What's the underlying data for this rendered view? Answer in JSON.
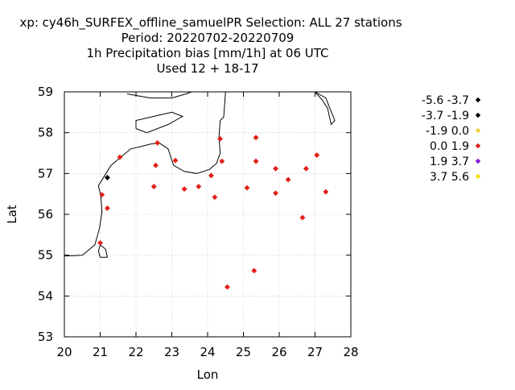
{
  "chart_data": {
    "type": "scatter",
    "title_lines": [
      "xp: cy46h_SURFEX_offline_samuelPR   Selection: ALL     27 stations",
      "Period: 20220702-20220709",
      "1h Precipitation bias [mm/1h] at  06 UTC",
      "Used  12 + 18-17"
    ],
    "xlabel": "Lon",
    "ylabel": "Lat",
    "xlim": [
      20,
      28
    ],
    "ylim": [
      53,
      59
    ],
    "xticks": [
      "20",
      "21",
      "22",
      "23",
      "24",
      "25",
      "26",
      "27",
      "28"
    ],
    "yticks": [
      "53",
      "54",
      "55",
      "56",
      "57",
      "58",
      "59"
    ],
    "grid": true,
    "legend_position": "right",
    "legend": [
      {
        "label": "-5.6 -3.7",
        "color": "#000000"
      },
      {
        "label": "-3.7 -1.9",
        "color": "#000000"
      },
      {
        "label": "-1.9 0.0",
        "color": "#f0d040"
      },
      {
        "label": "0.0 1.9",
        "color": "#e0201a"
      },
      {
        "label": "1.9 3.7",
        "color": "#8a1ad8"
      },
      {
        "label": "3.7 5.6",
        "color": "#f0e010"
      }
    ],
    "points": [
      {
        "x": 21.2,
        "y": 56.9,
        "cls": 1
      },
      {
        "x": 21.55,
        "y": 57.4,
        "cls": 3
      },
      {
        "x": 21.05,
        "y": 56.48,
        "cls": 3
      },
      {
        "x": 21.2,
        "y": 56.15,
        "cls": 3
      },
      {
        "x": 21.0,
        "y": 55.3,
        "cls": 3
      },
      {
        "x": 22.6,
        "y": 57.75,
        "cls": 3
      },
      {
        "x": 22.55,
        "y": 57.2,
        "cls": 3
      },
      {
        "x": 22.5,
        "y": 56.68,
        "cls": 3
      },
      {
        "x": 23.1,
        "y": 57.32,
        "cls": 3
      },
      {
        "x": 23.35,
        "y": 56.62,
        "cls": 3
      },
      {
        "x": 23.75,
        "y": 56.68,
        "cls": 3
      },
      {
        "x": 24.1,
        "y": 56.95,
        "cls": 3
      },
      {
        "x": 24.2,
        "y": 56.42,
        "cls": 3
      },
      {
        "x": 24.35,
        "y": 57.85,
        "cls": 3
      },
      {
        "x": 24.4,
        "y": 57.3,
        "cls": 3
      },
      {
        "x": 24.55,
        "y": 54.22,
        "cls": 3
      },
      {
        "x": 25.1,
        "y": 56.65,
        "cls": 3
      },
      {
        "x": 25.35,
        "y": 57.88,
        "cls": 3
      },
      {
        "x": 25.35,
        "y": 57.3,
        "cls": 3
      },
      {
        "x": 25.3,
        "y": 54.62,
        "cls": 3
      },
      {
        "x": 25.9,
        "y": 57.12,
        "cls": 3
      },
      {
        "x": 25.9,
        "y": 56.52,
        "cls": 3
      },
      {
        "x": 26.25,
        "y": 56.85,
        "cls": 3
      },
      {
        "x": 26.65,
        "y": 55.92,
        "cls": 3
      },
      {
        "x": 26.75,
        "y": 57.12,
        "cls": 3
      },
      {
        "x": 27.05,
        "y": 57.45,
        "cls": 3
      },
      {
        "x": 27.3,
        "y": 56.55,
        "cls": 3
      }
    ],
    "coastlines": [
      [
        [
          20.0,
          54.98
        ],
        [
          20.5,
          55.0
        ],
        [
          20.85,
          55.25
        ],
        [
          20.98,
          55.65
        ],
        [
          21.05,
          56.05
        ],
        [
          21.02,
          56.45
        ],
        [
          20.95,
          56.7
        ],
        [
          21.3,
          57.2
        ],
        [
          21.85,
          57.6
        ],
        [
          22.4,
          57.72
        ],
        [
          22.65,
          57.75
        ],
        [
          22.9,
          57.6
        ],
        [
          23.05,
          57.2
        ],
        [
          23.35,
          57.05
        ],
        [
          23.7,
          57.0
        ],
        [
          24.05,
          57.1
        ],
        [
          24.25,
          57.25
        ],
        [
          24.35,
          57.5
        ],
        [
          24.32,
          57.9
        ],
        [
          24.35,
          58.3
        ],
        [
          24.45,
          58.38
        ],
        [
          24.5,
          59.0
        ]
      ],
      [
        [
          21.0,
          55.25
        ],
        [
          21.15,
          55.15
        ],
        [
          21.2,
          54.95
        ],
        [
          21.0,
          54.95
        ],
        [
          20.95,
          55.1
        ],
        [
          21.0,
          55.25
        ]
      ],
      [
        [
          21.75,
          58.95
        ],
        [
          22.4,
          58.85
        ],
        [
          23.0,
          58.85
        ],
        [
          23.4,
          58.95
        ],
        [
          23.55,
          59.0
        ]
      ],
      [
        [
          22.0,
          58.1
        ],
        [
          22.3,
          58.0
        ],
        [
          22.9,
          58.2
        ],
        [
          23.3,
          58.4
        ],
        [
          23.0,
          58.5
        ],
        [
          22.5,
          58.4
        ],
        [
          22.0,
          58.3
        ],
        [
          22.0,
          58.1
        ]
      ],
      [
        [
          27.0,
          59.0
        ],
        [
          27.3,
          58.85
        ],
        [
          27.55,
          58.3
        ],
        [
          27.45,
          58.2
        ],
        [
          27.35,
          58.6
        ],
        [
          27.2,
          58.8
        ],
        [
          27.0,
          59.0
        ]
      ]
    ]
  }
}
